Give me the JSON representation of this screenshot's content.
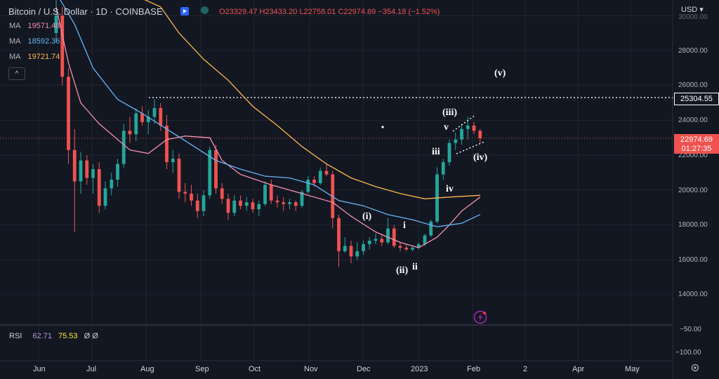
{
  "header": {
    "title": "Bitcoin / U.S. Dollar · 1D · COINBASE",
    "o": "O23329.47",
    "h": "H23433.20",
    "l": "L22758.01",
    "c": "C22974.69",
    "chg": "−354.18 (−1.52%)",
    "currency": "USD",
    "currency_caret": "▾"
  },
  "ma_rows": [
    {
      "label": "MA",
      "value": "19571.48",
      "color": "#f48fb1"
    },
    {
      "label": "MA",
      "value": "18592.36",
      "color": "#64b5f6"
    },
    {
      "label": "MA",
      "value": "19721.74",
      "color": "#ffb74d"
    }
  ],
  "collapse_icon": "^",
  "price_axis": [
    "28000.00",
    "26000.00",
    "24000.00",
    "22000.00",
    "20000.00",
    "18000.00",
    "16000.00",
    "14000.00"
  ],
  "price_axis_top_partial": "30000.00",
  "level_line": "25304.55",
  "last_price": "22974.69",
  "countdown": "01:27:35",
  "rsi": {
    "label": "RSI",
    "v1": "62.71",
    "v2": "75.53",
    "icons": "Ø Ø",
    "axis": [
      "−50.00",
      "−100.00"
    ]
  },
  "time_axis": [
    "Jun",
    "Jul",
    "Aug",
    "Sep",
    "Oct",
    "Nov",
    "Dec",
    "2023",
    "Feb",
    "2",
    "Apr",
    "May"
  ],
  "waves": [
    "(v)",
    "(iii)",
    "v",
    "iii",
    "(iv)",
    "iv",
    "(i)",
    "i",
    "(ii)",
    "ii"
  ],
  "colors": {
    "up": "#26a69a",
    "down": "#ef5350",
    "ma1": "#f48fb1",
    "ma2": "#64b5f6",
    "ma3": "#ffb74d",
    "bg": "#131722",
    "grid": "#2a2e39"
  },
  "chart_data": {
    "type": "candlestick",
    "ylim": [
      12700,
      30000
    ],
    "candles": [
      [
        29000,
        31000,
        28500,
        30000
      ],
      [
        30000,
        30500,
        26000,
        26500
      ],
      [
        26500,
        27000,
        21500,
        22300
      ],
      [
        22300,
        23500,
        17600,
        20500
      ],
      [
        20500,
        22200,
        19800,
        21700
      ],
      [
        21700,
        22000,
        20300,
        20700
      ],
      [
        20700,
        21500,
        19800,
        21200
      ],
      [
        21200,
        21600,
        18700,
        19100
      ],
      [
        19100,
        20500,
        18900,
        20100
      ],
      [
        20100,
        21000,
        19700,
        20600
      ],
      [
        20600,
        21800,
        20200,
        21500
      ],
      [
        21500,
        23800,
        21300,
        23400
      ],
      [
        23400,
        24200,
        22700,
        23200
      ],
      [
        23200,
        24700,
        22800,
        24400
      ],
      [
        24400,
        24800,
        23700,
        23900
      ],
      [
        23900,
        24600,
        23200,
        24200
      ],
      [
        24200,
        25200,
        23800,
        24700
      ],
      [
        24700,
        25000,
        23400,
        23700
      ],
      [
        23700,
        24300,
        21200,
        21600
      ],
      [
        21600,
        22300,
        21000,
        21800
      ],
      [
        21800,
        22100,
        19500,
        19900
      ],
      [
        19900,
        20400,
        19300,
        19800
      ],
      [
        19800,
        20300,
        19100,
        19400
      ],
      [
        19400,
        19800,
        18400,
        18800
      ],
      [
        18800,
        20000,
        18500,
        19700
      ],
      [
        19700,
        22500,
        19500,
        22300
      ],
      [
        22300,
        22600,
        19800,
        20100
      ],
      [
        20100,
        20400,
        19200,
        19500
      ],
      [
        19500,
        19800,
        18300,
        18700
      ],
      [
        18700,
        19700,
        18500,
        19400
      ],
      [
        19400,
        19700,
        18900,
        19100
      ],
      [
        19100,
        19600,
        18800,
        19300
      ],
      [
        19300,
        19500,
        18700,
        18900
      ],
      [
        18900,
        19400,
        18500,
        19200
      ],
      [
        19200,
        20500,
        19100,
        20300
      ],
      [
        20300,
        20600,
        19200,
        19400
      ],
      [
        19400,
        19700,
        19000,
        19300
      ],
      [
        19300,
        19600,
        18800,
        19200
      ],
      [
        19200,
        19500,
        18900,
        19300
      ],
      [
        19300,
        19400,
        18800,
        19100
      ],
      [
        19100,
        20000,
        19000,
        19900
      ],
      [
        19900,
        20800,
        19800,
        20600
      ],
      [
        20600,
        20800,
        20200,
        20400
      ],
      [
        20400,
        21300,
        20300,
        21100
      ],
      [
        21100,
        21500,
        20800,
        20900
      ],
      [
        20900,
        21100,
        17800,
        18400
      ],
      [
        18400,
        18600,
        15600,
        16500
      ],
      [
        16500,
        17300,
        16400,
        16800
      ],
      [
        16800,
        17100,
        15800,
        16200
      ],
      [
        16200,
        17000,
        16000,
        16500
      ],
      [
        16500,
        17100,
        16300,
        16900
      ],
      [
        16900,
        17300,
        16600,
        17100
      ],
      [
        17100,
        17500,
        16900,
        17200
      ],
      [
        17200,
        17400,
        16800,
        17000
      ],
      [
        17000,
        18400,
        16900,
        17800
      ],
      [
        17800,
        18000,
        16700,
        16800
      ],
      [
        16800,
        17000,
        16500,
        16700
      ],
      [
        16700,
        16900,
        16500,
        16600
      ],
      [
        16600,
        16800,
        16500,
        16700
      ],
      [
        16700,
        17000,
        16600,
        16900
      ],
      [
        16900,
        17500,
        16800,
        17400
      ],
      [
        17400,
        18300,
        17300,
        18200
      ],
      [
        18200,
        21300,
        18100,
        20900
      ],
      [
        20900,
        21800,
        20600,
        21600
      ],
      [
        21600,
        22900,
        21400,
        22700
      ],
      [
        22700,
        23300,
        22300,
        22900
      ],
      [
        22900,
        23800,
        22600,
        23500
      ],
      [
        23500,
        24200,
        22900,
        23700
      ],
      [
        23700,
        23900,
        23200,
        23400
      ],
      [
        23400,
        23500,
        22700,
        22975
      ]
    ],
    "ma_pink": [
      [
        0,
        30500
      ],
      [
        2,
        27300
      ],
      [
        4,
        25000
      ],
      [
        7,
        23800
      ],
      [
        10,
        22900
      ],
      [
        12,
        22300
      ],
      [
        15,
        22100
      ],
      [
        18,
        22900
      ],
      [
        21,
        23100
      ],
      [
        25,
        23000
      ],
      [
        27,
        21700
      ],
      [
        30,
        20900
      ],
      [
        35,
        20300
      ],
      [
        40,
        19800
      ],
      [
        45,
        19300
      ],
      [
        48,
        18500
      ],
      [
        52,
        17600
      ],
      [
        56,
        17000
      ],
      [
        59,
        16700
      ],
      [
        62,
        17300
      ],
      [
        64,
        18000
      ],
      [
        66,
        18800
      ],
      [
        69,
        19600
      ]
    ],
    "ma_blue": [
      [
        0,
        32000
      ],
      [
        3,
        29500
      ],
      [
        6,
        27000
      ],
      [
        10,
        25200
      ],
      [
        14,
        24400
      ],
      [
        18,
        23500
      ],
      [
        22,
        22600
      ],
      [
        26,
        21700
      ],
      [
        30,
        21200
      ],
      [
        34,
        20800
      ],
      [
        38,
        20700
      ],
      [
        42,
        20300
      ],
      [
        46,
        19400
      ],
      [
        50,
        19100
      ],
      [
        54,
        18600
      ],
      [
        58,
        18300
      ],
      [
        62,
        17900
      ],
      [
        66,
        18100
      ],
      [
        69,
        18600
      ]
    ],
    "ma_orange": [
      [
        12,
        32000
      ],
      [
        17,
        30500
      ],
      [
        20,
        29000
      ],
      [
        24,
        27500
      ],
      [
        28,
        26300
      ],
      [
        32,
        24800
      ],
      [
        36,
        23700
      ],
      [
        40,
        22500
      ],
      [
        44,
        21500
      ],
      [
        48,
        20700
      ],
      [
        52,
        20200
      ],
      [
        56,
        19800
      ],
      [
        60,
        19500
      ],
      [
        64,
        19600
      ],
      [
        69,
        19700
      ]
    ]
  }
}
